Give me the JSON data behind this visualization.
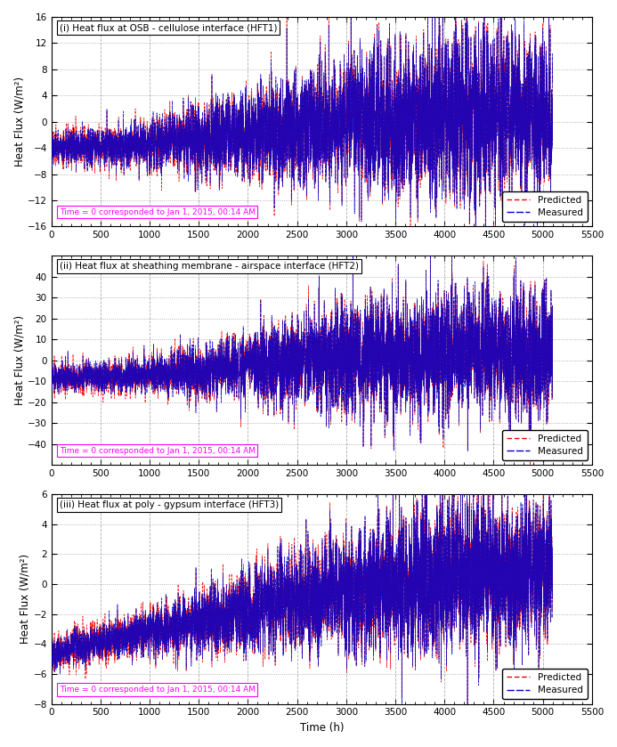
{
  "subplot1": {
    "title": "(i) Heat flux at OSB - cellulose interface (HFT1)",
    "ylim": [
      -16,
      16
    ],
    "yticks": [
      -16,
      -12,
      -8,
      -4,
      0,
      4,
      8,
      12,
      16
    ],
    "ylabel": "Heat Flux (W/m²)"
  },
  "subplot2": {
    "title": "(ii) Heat flux at sheathing membrane - airspace interface (HFT2)",
    "ylim": [
      -50,
      50
    ],
    "yticks": [
      -40,
      -30,
      -20,
      -10,
      0,
      10,
      20,
      30,
      40
    ],
    "ylabel": "Heat Flux (W/m²)"
  },
  "subplot3": {
    "title": "(iii) Heat flux at poly - gypsum interface (HFT3)",
    "ylim": [
      -8,
      6
    ],
    "yticks": [
      -8,
      -6,
      -4,
      -2,
      0,
      2,
      4,
      6
    ],
    "ylabel": "Heat Flux (W/m²)"
  },
  "xlim": [
    0,
    5500
  ],
  "xticks": [
    0,
    500,
    1000,
    1500,
    2000,
    2500,
    3000,
    3500,
    4000,
    4500,
    5000,
    5500
  ],
  "xlabel": "Time (h)",
  "time_label": "Time = 0 corresponded to Jan 1, 2015, 00:14 AM",
  "predicted_color": "#EE0000",
  "measured_color": "#0000CC",
  "grid_color": "#888888",
  "background_color": "#FFFFFF",
  "label_predicted": "Predicted",
  "label_measured": "Measured",
  "seed": 42,
  "n_points": 5100
}
